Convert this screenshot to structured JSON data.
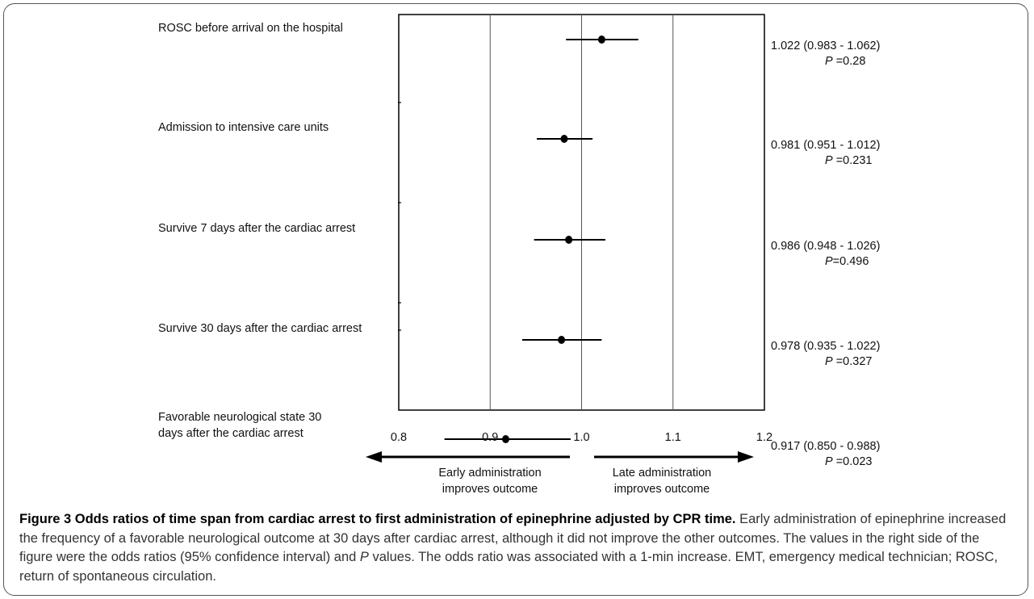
{
  "chart_data": {
    "type": "forest",
    "xlim": [
      0.8,
      1.2
    ],
    "x_ticks": [
      "0.8",
      "0.9",
      "1.0",
      "1.1",
      "1.2"
    ],
    "reference_lines": [
      0.9,
      1.0,
      1.1
    ],
    "rows": [
      {
        "label": [
          "ROSC before arrival on the hospital"
        ],
        "or": 1.022,
        "lo": 0.983,
        "hi": 1.062,
        "or_text": "1.022 (0.983 - 1.062)",
        "p_prefix": "P",
        "p_text": " =0.28"
      },
      {
        "label": [
          "Admission to intensive care units"
        ],
        "or": 0.981,
        "lo": 0.951,
        "hi": 1.012,
        "or_text": "0.981 (0.951 - 1.012)",
        "p_prefix": "P",
        "p_text": " =0.231"
      },
      {
        "label": [
          "Survive 7 days after the cardiac arrest"
        ],
        "or": 0.986,
        "lo": 0.948,
        "hi": 1.026,
        "or_text": "0.986 (0.948 - 1.026)",
        "p_prefix": "P",
        "p_text": "=0.496"
      },
      {
        "label": [
          "Survive 30 days after the cardiac arrest"
        ],
        "or": 0.978,
        "lo": 0.935,
        "hi": 1.022,
        "or_text": "0.978 (0.935 - 1.022)",
        "p_prefix": "P",
        "p_text": " =0.327"
      },
      {
        "label": [
          "Favorable neurological state 30",
          "days after the cardiac arrest"
        ],
        "or": 0.917,
        "lo": 0.85,
        "hi": 0.988,
        "or_text": "0.917 (0.850 - 0.988)",
        "p_prefix": "P",
        "p_text": " =0.023"
      }
    ],
    "arrow_left": [
      "Early administration",
      "improves outcome"
    ],
    "arrow_right": [
      "Late administration",
      "improves outcome"
    ]
  },
  "caption": {
    "title": "Figure 3 Odds ratios of time span from cardiac arrest to first administration of epinephrine adjusted by CPR time.",
    "body_1": " Early administration of epinephrine increased the frequency of a favorable neurological outcome at 30 days after cardiac arrest, although it did not improve the other outcomes. The values in the right side of the figure were the odds ratios (95% confidence interval) and ",
    "body_p": "P",
    "body_2": " values. The odds ratio was associated with a 1-min increase. EMT, emergency medical technician; ROSC, return of spontaneous circulation."
  }
}
